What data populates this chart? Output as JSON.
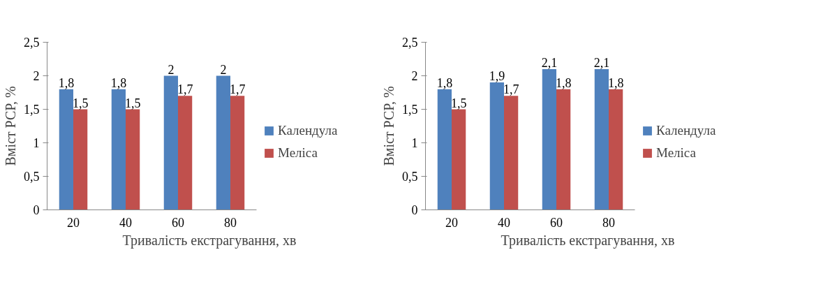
{
  "chart_data": [
    {
      "type": "bar",
      "categories": [
        "20",
        "40",
        "60",
        "80"
      ],
      "xlabel": "Тривалість екстрагування, хв",
      "ylabel": "Вміст РСР, %",
      "ylim": [
        0,
        2.5
      ],
      "yticks": [
        0,
        {
          "value": 0.5,
          "label": "0,5"
        },
        1,
        {
          "value": 1.5,
          "label": "1,5"
        },
        2,
        {
          "value": 2.5,
          "label": "2,5"
        }
      ],
      "grid": false,
      "legend": "right",
      "series": [
        {
          "name": "Календула",
          "color": "#4f81bd",
          "values": [
            1.8,
            1.8,
            2,
            2
          ],
          "value_labels": [
            "1,8",
            "1,8",
            "2",
            "2"
          ]
        },
        {
          "name": "Меліса",
          "color": "#c0504d",
          "values": [
            1.5,
            1.5,
            1.7,
            1.7
          ],
          "value_labels": [
            "1,5",
            "1,5",
            "1,7",
            "1,7"
          ]
        }
      ]
    },
    {
      "type": "bar",
      "categories": [
        "20",
        "40",
        "60",
        "80"
      ],
      "xlabel": "Тривалість екстрагування, хв",
      "ylabel": "Вміст РСР, %",
      "ylim": [
        0,
        2.5
      ],
      "yticks": [
        0,
        {
          "value": 0.5,
          "label": "0,5"
        },
        1,
        {
          "value": 1.5,
          "label": "1,5"
        },
        2,
        {
          "value": 2.5,
          "label": "2,5"
        }
      ],
      "grid": false,
      "legend": "right",
      "series": [
        {
          "name": "Календула",
          "color": "#4f81bd",
          "values": [
            1.8,
            1.9,
            2.1,
            2.1
          ],
          "value_labels": [
            "1,8",
            "1,9",
            "2,1",
            "2,1"
          ]
        },
        {
          "name": "Меліса",
          "color": "#c0504d",
          "values": [
            1.5,
            1.7,
            1.8,
            1.8
          ],
          "value_labels": [
            "1,5",
            "1,7",
            "1,8",
            "1,8"
          ]
        }
      ]
    }
  ]
}
